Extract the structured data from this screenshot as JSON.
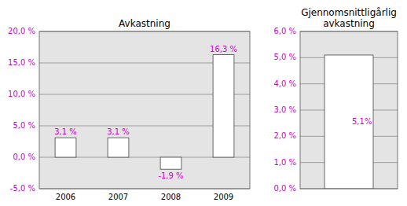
{
  "chart_data": [
    {
      "type": "bar",
      "title": "Avkastning",
      "categories": [
        "2006",
        "2007",
        "2008",
        "2009"
      ],
      "values": [
        3.1,
        3.1,
        -1.9,
        16.3
      ],
      "value_labels": [
        "3,1 %",
        "3,1 %",
        "-1,9 %",
        "16,3 %"
      ],
      "color": "#ffffff",
      "ylim": [
        -5.0,
        20.0
      ],
      "yticks": [
        {
          "value": -5.0,
          "label": "-5,0 %"
        },
        {
          "value": 0.0,
          "label": "0,0 %"
        },
        {
          "value": 5.0,
          "label": "5,0 %"
        },
        {
          "value": 10.0,
          "label": "10,0 %"
        },
        {
          "value": 15.0,
          "label": "15,0 %"
        },
        {
          "value": 20.0,
          "label": "20,0 %"
        }
      ],
      "grid": true,
      "data_labels": true
    },
    {
      "type": "bar",
      "title": "Gjennomsnittligårlig\navkastning",
      "values": [
        5.1
      ],
      "value_labels": [
        "5,1%"
      ],
      "color": "#ffffff",
      "ylim": [
        0.0,
        6.0
      ],
      "yticks": [
        {
          "value": 0.0,
          "label": "0,0 %"
        },
        {
          "value": 1.0,
          "label": "1,0 %"
        },
        {
          "value": 2.0,
          "label": "2,0 %"
        },
        {
          "value": 3.0,
          "label": "3,0 %"
        },
        {
          "value": 4.0,
          "label": "4,0 %"
        },
        {
          "value": 5.0,
          "label": "5,0 %"
        },
        {
          "value": 6.0,
          "label": "6,0 %"
        }
      ],
      "grid": true,
      "data_labels": true,
      "tick_labels": "y"
    }
  ]
}
